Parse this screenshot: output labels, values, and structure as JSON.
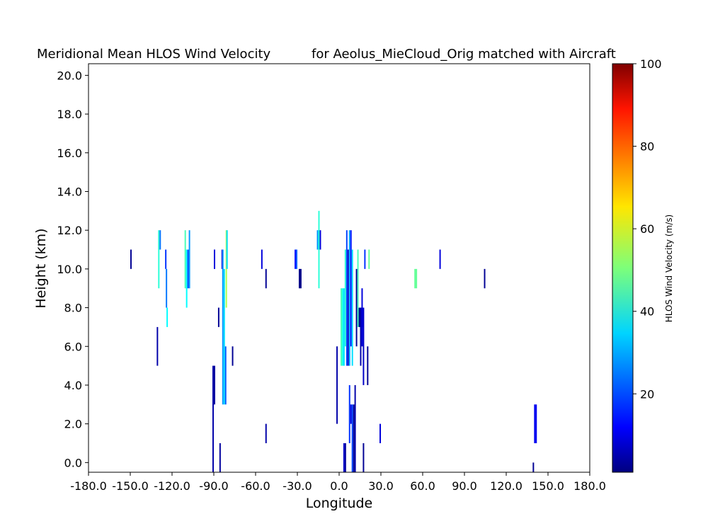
{
  "chart_data": {
    "type": "heatmap",
    "title_left": "Meridional Mean HLOS Wind Velocity",
    "title_right": "for Aeolus_MieCloud_Orig matched with Aircraft",
    "xlabel": "Longitude",
    "ylabel": "Height (km)",
    "xlim": [
      -180,
      180
    ],
    "ylim": [
      -0.5,
      20.6
    ],
    "xticks": [
      -180,
      -150,
      -120,
      -90,
      -60,
      -30,
      0,
      30,
      60,
      90,
      120,
      150,
      180
    ],
    "xtick_labels": [
      "-180.0",
      "-150.0",
      "-120.0",
      "-90.0",
      "-60.0",
      "-30.0",
      "0.0",
      "30.0",
      "60.0",
      "90.0",
      "120.0",
      "150.0",
      "180.0"
    ],
    "yticks": [
      0,
      2,
      4,
      6,
      8,
      10,
      12,
      14,
      16,
      18,
      20
    ],
    "ytick_labels": [
      "0.0",
      "2.0",
      "4.0",
      "6.0",
      "8.0",
      "10.0",
      "12.0",
      "14.0",
      "16.0",
      "18.0",
      "20.0"
    ],
    "colorbar": {
      "label": "HLOS Wind Velocity (m/s)",
      "colormap": "jet",
      "vmin": 1,
      "vmax": 100,
      "ticks": [
        20,
        40,
        60,
        80,
        100
      ],
      "tick_labels": [
        "20",
        "40",
        "60",
        "80",
        "100"
      ]
    },
    "cells": [
      {
        "lon": -150,
        "z0": 10,
        "z1": 11,
        "w": 1,
        "v": 3
      },
      {
        "lon": -131,
        "z0": 5,
        "z1": 7,
        "w": 1,
        "v": 5
      },
      {
        "lon": -130,
        "z0": 9,
        "z1": 12,
        "w": 1,
        "v": 42
      },
      {
        "lon": -129,
        "z0": 11,
        "z1": 12,
        "w": 1,
        "v": 25
      },
      {
        "lon": -125,
        "z0": 10,
        "z1": 11,
        "w": 1,
        "v": 18
      },
      {
        "lon": -124.5,
        "z0": 8,
        "z1": 10,
        "w": 1,
        "v": 25
      },
      {
        "lon": -124,
        "z0": 7,
        "z1": 8,
        "w": 1,
        "v": 38
      },
      {
        "lon": -111,
        "z0": 9,
        "z1": 12,
        "w": 1,
        "v": 45
      },
      {
        "lon": -110,
        "z0": 8,
        "z1": 11,
        "w": 1,
        "v": 38
      },
      {
        "lon": -109,
        "z0": 9,
        "z1": 11,
        "w": 1,
        "v": 20
      },
      {
        "lon": -108,
        "z0": 9,
        "z1": 12,
        "w": 1,
        "v": 28
      },
      {
        "lon": -90,
        "z0": 10,
        "z1": 11,
        "w": 1,
        "v": 10
      },
      {
        "lon": -91,
        "z0": -0.5,
        "z1": 5,
        "w": 1,
        "v": 5
      },
      {
        "lon": -90,
        "z0": 3,
        "z1": 5,
        "w": 1,
        "v": 4
      },
      {
        "lon": -87,
        "z0": 7,
        "z1": 8,
        "w": 1,
        "v": 3
      },
      {
        "lon": -86,
        "z0": -0.5,
        "z1": 1,
        "w": 1,
        "v": 4
      },
      {
        "lon": -84.5,
        "z0": 10,
        "z1": 11,
        "w": 1,
        "v": 10
      },
      {
        "lon": -84,
        "z0": 3,
        "z1": 11,
        "w": 1,
        "v": 28
      },
      {
        "lon": -83,
        "z0": 3,
        "z1": 10,
        "w": 1,
        "v": 35
      },
      {
        "lon": -82,
        "z0": 3,
        "z1": 6,
        "w": 1,
        "v": 22
      },
      {
        "lon": -81.5,
        "z0": 8,
        "z1": 12,
        "w": 1,
        "v": 55
      },
      {
        "lon": -81,
        "z0": 10,
        "z1": 12,
        "w": 1,
        "v": 35
      },
      {
        "lon": -77,
        "z0": 5,
        "z1": 6,
        "w": 1,
        "v": 3
      },
      {
        "lon": -56,
        "z0": 10,
        "z1": 11,
        "w": 1,
        "v": 10
      },
      {
        "lon": -53,
        "z0": 9,
        "z1": 10,
        "w": 1,
        "v": 3
      },
      {
        "lon": -53,
        "z0": 1,
        "z1": 2,
        "w": 1,
        "v": 5
      },
      {
        "lon": -32,
        "z0": 10,
        "z1": 11,
        "w": 1,
        "v": 15
      },
      {
        "lon": -31,
        "z0": 10,
        "z1": 11,
        "w": 1,
        "v": 22
      },
      {
        "lon": -29,
        "z0": 9,
        "z1": 10,
        "w": 2,
        "v": 2
      },
      {
        "lon": -16,
        "z0": 11,
        "z1": 12,
        "w": 1,
        "v": 28
      },
      {
        "lon": -15,
        "z0": 9,
        "z1": 13,
        "w": 1,
        "v": 42
      },
      {
        "lon": -14,
        "z0": 11,
        "z1": 12,
        "w": 1,
        "v": 10
      },
      {
        "lon": -2,
        "z0": 2,
        "z1": 6,
        "w": 1,
        "v": 5
      },
      {
        "lon": 1,
        "z0": 5,
        "z1": 9,
        "w": 1,
        "v": 45
      },
      {
        "lon": 2,
        "z0": 5,
        "z1": 9,
        "w": 1,
        "v": 40
      },
      {
        "lon": 3,
        "z0": 5,
        "z1": 9,
        "w": 1,
        "v": 35
      },
      {
        "lon": 4,
        "z0": 6,
        "z1": 11,
        "w": 1,
        "v": 42
      },
      {
        "lon": 5,
        "z0": 5,
        "z1": 12,
        "w": 1,
        "v": 20
      },
      {
        "lon": 6,
        "z0": 5,
        "z1": 11,
        "w": 1,
        "v": 8
      },
      {
        "lon": 7,
        "z0": 5,
        "z1": 12,
        "w": 1,
        "v": 30
      },
      {
        "lon": 8,
        "z0": 6,
        "z1": 12,
        "w": 1,
        "v": 15
      },
      {
        "lon": 9,
        "z0": 5,
        "z1": 11,
        "w": 1,
        "v": 35
      },
      {
        "lon": 3,
        "z0": -0.5,
        "z1": 1,
        "w": 1,
        "v": 8
      },
      {
        "lon": 4,
        "z0": -0.5,
        "z1": 1,
        "w": 1,
        "v": 4
      },
      {
        "lon": 7,
        "z0": 1,
        "z1": 4,
        "w": 1,
        "v": 18
      },
      {
        "lon": 8,
        "z0": 2,
        "z1": 3,
        "w": 1,
        "v": 10
      },
      {
        "lon": 9,
        "z0": -0.5,
        "z1": 3,
        "w": 1,
        "v": 20
      },
      {
        "lon": 10,
        "z0": -0.5,
        "z1": 3,
        "w": 1,
        "v": 3
      },
      {
        "lon": 11,
        "z0": -0.5,
        "z1": 4,
        "w": 1,
        "v": 5
      },
      {
        "lon": 12,
        "z0": 6,
        "z1": 10,
        "w": 1,
        "v": 3
      },
      {
        "lon": 13,
        "z0": 7,
        "z1": 11,
        "w": 1,
        "v": 45
      },
      {
        "lon": 14,
        "z0": 7,
        "z1": 8,
        "w": 3,
        "v": 3
      },
      {
        "lon": 15,
        "z0": 5,
        "z1": 8,
        "w": 1,
        "v": 5
      },
      {
        "lon": 16,
        "z0": 6,
        "z1": 9,
        "w": 1,
        "v": 10
      },
      {
        "lon": 17,
        "z0": 4,
        "z1": 8,
        "w": 1,
        "v": 8
      },
      {
        "lon": 17,
        "z0": -0.5,
        "z1": 1,
        "w": 1,
        "v": 3
      },
      {
        "lon": 18,
        "z0": 10,
        "z1": 11,
        "w": 1,
        "v": 18
      },
      {
        "lon": 20,
        "z0": 4,
        "z1": 6,
        "w": 1,
        "v": 3
      },
      {
        "lon": 21,
        "z0": 10,
        "z1": 11,
        "w": 1,
        "v": 48
      },
      {
        "lon": 29,
        "z0": 1,
        "z1": 2,
        "w": 1,
        "v": 10
      },
      {
        "lon": 54,
        "z0": 9,
        "z1": 10,
        "w": 2,
        "v": 48
      },
      {
        "lon": 72,
        "z0": 10,
        "z1": 11,
        "w": 1,
        "v": 10
      },
      {
        "lon": 104,
        "z0": 9,
        "z1": 10,
        "w": 1,
        "v": 3
      },
      {
        "lon": 139,
        "z0": -0.5,
        "z1": 0,
        "w": 1,
        "v": 3
      },
      {
        "lon": 140,
        "z0": 1,
        "z1": 3,
        "w": 2,
        "v": 12
      }
    ]
  }
}
